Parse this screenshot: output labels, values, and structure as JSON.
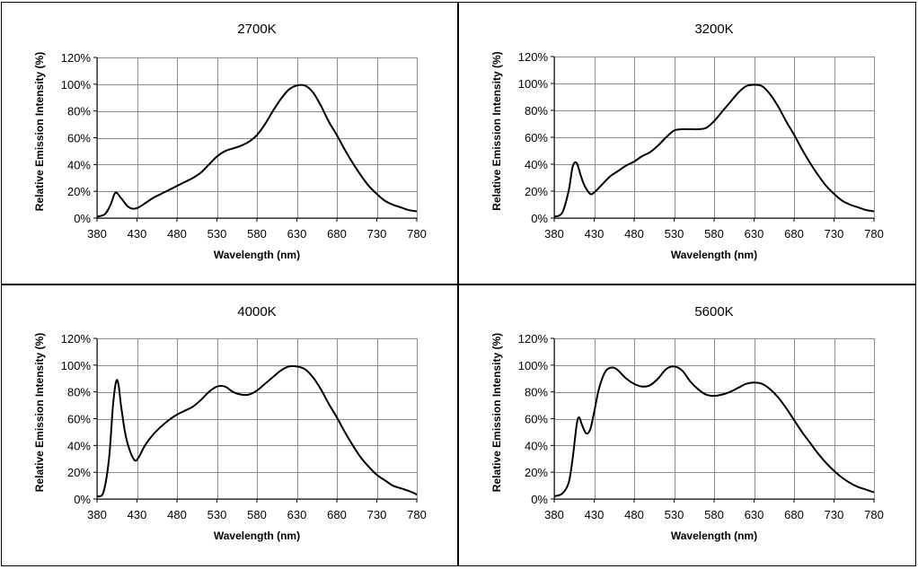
{
  "chart_data": [
    {
      "type": "line",
      "title": "2700K",
      "xlabel": "Wavelength (nm)",
      "ylabel": "Relative Emission Intensity (%)",
      "xlim": [
        380,
        780
      ],
      "ylim": [
        0,
        120
      ],
      "x_ticks": [
        "380",
        "430",
        "480",
        "530",
        "580",
        "630",
        "680",
        "730",
        "780"
      ],
      "y_ticks": [
        "0%",
        "20%",
        "40%",
        "60%",
        "80%",
        "100%",
        "120%"
      ],
      "grid": true,
      "series": [
        {
          "x": [
            380,
            390,
            397,
            403,
            410,
            418,
            425,
            432,
            440,
            450,
            460,
            470,
            480,
            490,
            500,
            510,
            520,
            530,
            540,
            550,
            560,
            570,
            580,
            590,
            600,
            610,
            620,
            630,
            640,
            650,
            660,
            670,
            680,
            690,
            700,
            710,
            720,
            730,
            740,
            750,
            760,
            770,
            780
          ],
          "values": [
            1,
            3,
            10,
            19,
            15,
            9,
            7,
            8,
            11,
            15,
            18,
            21,
            24,
            27,
            30,
            34,
            40,
            46,
            50,
            52,
            54,
            57,
            62,
            70,
            80,
            89,
            96,
            99,
            99,
            94,
            84,
            72,
            62,
            51,
            41,
            32,
            24,
            18,
            13,
            10,
            8,
            6,
            5
          ]
        }
      ]
    },
    {
      "type": "line",
      "title": "3200K",
      "xlabel": "Wavelength (nm)",
      "ylabel": "Relative Emission Intensity (%)",
      "xlim": [
        380,
        780
      ],
      "ylim": [
        0,
        120
      ],
      "x_ticks": [
        "380",
        "430",
        "480",
        "530",
        "580",
        "630",
        "680",
        "730",
        "780"
      ],
      "y_ticks": [
        "0%",
        "20%",
        "40%",
        "60%",
        "80%",
        "100%",
        "120%"
      ],
      "grid": true,
      "series": [
        {
          "x": [
            380,
            390,
            398,
            403,
            408,
            413,
            418,
            425,
            430,
            440,
            450,
            460,
            470,
            480,
            490,
            500,
            510,
            520,
            530,
            540,
            550,
            560,
            570,
            580,
            590,
            600,
            610,
            620,
            630,
            640,
            650,
            660,
            670,
            680,
            690,
            700,
            710,
            720,
            730,
            740,
            750,
            760,
            770,
            780
          ],
          "values": [
            1,
            4,
            20,
            38,
            41,
            32,
            24,
            18,
            19,
            25,
            31,
            35,
            39,
            42,
            46,
            49,
            54,
            60,
            65,
            66,
            66,
            66,
            67,
            72,
            79,
            86,
            93,
            98,
            99,
            98,
            92,
            83,
            72,
            62,
            51,
            41,
            32,
            24,
            18,
            13,
            10,
            8,
            6,
            5
          ]
        }
      ]
    },
    {
      "type": "line",
      "title": "4000K",
      "xlabel": "Wavelength (nm)",
      "ylabel": "Relative Emission Intensity (%)",
      "xlim": [
        380,
        780
      ],
      "ylim": [
        0,
        120
      ],
      "x_ticks": [
        "380",
        "430",
        "480",
        "530",
        "580",
        "630",
        "680",
        "730",
        "780"
      ],
      "y_ticks": [
        "0%",
        "20%",
        "40%",
        "60%",
        "80%",
        "100%",
        "120%"
      ],
      "grid": true,
      "series": [
        {
          "x": [
            380,
            388,
            395,
            400,
            404,
            407,
            410,
            415,
            420,
            427,
            432,
            440,
            450,
            460,
            470,
            480,
            490,
            500,
            510,
            520,
            530,
            540,
            550,
            560,
            570,
            580,
            590,
            600,
            610,
            620,
            630,
            640,
            650,
            660,
            670,
            680,
            690,
            700,
            710,
            720,
            730,
            740,
            750,
            760,
            770,
            778,
            780
          ],
          "values": [
            2,
            5,
            30,
            70,
            88,
            85,
            70,
            50,
            38,
            29,
            31,
            40,
            48,
            54,
            59,
            63,
            66,
            69,
            74,
            80,
            84,
            84,
            80,
            78,
            78,
            81,
            86,
            91,
            96,
            99,
            99,
            97,
            91,
            82,
            71,
            61,
            50,
            40,
            31,
            24,
            18,
            14,
            10,
            8,
            6,
            4,
            3
          ]
        }
      ]
    },
    {
      "type": "line",
      "title": "5600K",
      "xlabel": "Wavelength (nm)",
      "ylabel": "Relative Emission Intensity (%)",
      "xlim": [
        380,
        780
      ],
      "ylim": [
        0,
        120
      ],
      "x_ticks": [
        "380",
        "430",
        "480",
        "530",
        "580",
        "630",
        "680",
        "730",
        "780"
      ],
      "y_ticks": [
        "0%",
        "20%",
        "40%",
        "60%",
        "80%",
        "100%",
        "120%"
      ],
      "grid": true,
      "series": [
        {
          "x": [
            380,
            390,
            398,
            403,
            408,
            411,
            415,
            420,
            425,
            430,
            435,
            440,
            445,
            450,
            455,
            460,
            470,
            480,
            490,
            500,
            510,
            520,
            530,
            540,
            550,
            560,
            570,
            580,
            590,
            600,
            610,
            620,
            630,
            640,
            650,
            660,
            670,
            680,
            690,
            700,
            710,
            720,
            730,
            740,
            750,
            760,
            770,
            780
          ],
          "values": [
            2,
            4,
            12,
            30,
            55,
            61,
            55,
            49,
            52,
            65,
            80,
            90,
            96,
            98,
            98,
            96,
            90,
            86,
            84,
            85,
            90,
            97,
            99,
            96,
            88,
            82,
            78,
            77,
            78,
            80,
            83,
            86,
            87,
            86,
            82,
            76,
            68,
            59,
            50,
            42,
            34,
            27,
            21,
            16,
            12,
            9,
            7,
            5
          ]
        }
      ]
    }
  ]
}
